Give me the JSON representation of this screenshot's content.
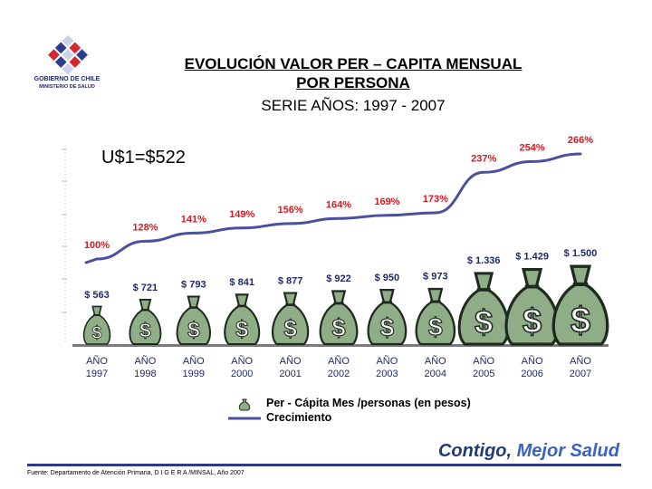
{
  "header": {
    "logo_line1": "GOBIERNO DE CHILE",
    "logo_line2": "MINISTERIO DE SALUD",
    "title_line1": "EVOLUCIÓN  VALOR PER – CAPITA  MENSUAL",
    "title_line2": "POR PERSONA",
    "subtitle": "SERIE AÑOS: 1997 - 2007",
    "exchange_rate": "U$1=$522"
  },
  "legend": {
    "item1": "Per - Cápita Mes /personas (en pesos)",
    "item2": "Crecimiento"
  },
  "footer": {
    "slogan_part1": "Contigo,",
    "slogan_part2": "Mejor Salud",
    "source": "Fuente: Departamento de Atención Primaria, D I G E R A /MINSAL, Año 2007"
  },
  "colors": {
    "line": "#4a4f9e",
    "growth_label": "#e0161c",
    "value_label": "#1f2a6b",
    "bag": "#8fae87",
    "bag_stroke": "#1f2a1f",
    "axis": "#7a7a7a"
  },
  "chart_data": {
    "type": "bar",
    "title": "EVOLUCIÓN  VALOR PER – CAPITA  MENSUAL POR PERSONA",
    "subtitle": "SERIE AÑOS: 1997 - 2007",
    "categories": [
      "AÑO 1997",
      "AÑO 1998",
      "AÑO 1999",
      "AÑO 2000",
      "AÑO 2001",
      "AÑO 2002",
      "AÑO 2003",
      "AÑO 2004",
      "AÑO 2005",
      "AÑO 2006",
      "AÑO 2007"
    ],
    "category_years": [
      "1997",
      "1998",
      "1999",
      "2000",
      "2001",
      "2002",
      "2003",
      "2004",
      "2005",
      "2006",
      "2007"
    ],
    "year_prefix": "AÑO",
    "series": [
      {
        "name": "Per - Cápita Mes /personas (en pesos)",
        "kind": "bag-pictograph",
        "values": [
          563,
          721,
          793,
          841,
          877,
          922,
          950,
          973,
          1336,
          1429,
          1500
        ],
        "labels": [
          "$ 563",
          "$ 721",
          "$ 793",
          "$ 841",
          "$ 877",
          "$ 922",
          "$ 950",
          "$ 973",
          "$ 1.336",
          "$ 1.429",
          "$ 1.500"
        ]
      },
      {
        "name": "Crecimiento",
        "kind": "line",
        "values": [
          100,
          128,
          141,
          149,
          156,
          164,
          169,
          173,
          237,
          254,
          266
        ],
        "labels": [
          "100%",
          "128%",
          "141%",
          "149%",
          "156%",
          "164%",
          "169%",
          "173%",
          "237%",
          "254%",
          "266%"
        ]
      }
    ],
    "ylim_growth": [
      100,
      266
    ],
    "bag_symbol": "$"
  }
}
